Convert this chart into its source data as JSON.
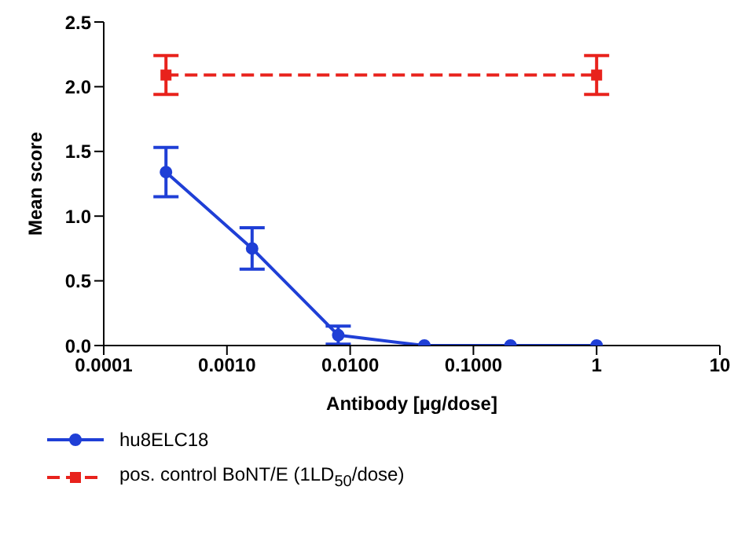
{
  "chart_data": {
    "type": "line",
    "xlabel": "Antibody [µg/dose]",
    "ylabel": "Mean score",
    "log": "x",
    "xlim": [
      0.0001,
      10
    ],
    "xticks": [
      {
        "value": 0.0001,
        "label": "0.0001"
      },
      {
        "value": 0.001,
        "label": "0.0010"
      },
      {
        "value": 0.01,
        "label": "0.0100"
      },
      {
        "value": 0.1,
        "label": "0.1000"
      },
      1,
      10
    ],
    "ylim": [
      0,
      2.5
    ],
    "yticks": [
      {
        "value": 0,
        "label": "0.0"
      },
      {
        "value": 0.5,
        "label": "0.5"
      },
      {
        "value": 1,
        "label": "1.0"
      },
      {
        "value": 1.5,
        "label": "1.5"
      },
      {
        "value": 2,
        "label": "2.0"
      },
      {
        "value": 2.5,
        "label": "2.5"
      }
    ],
    "legend": "bottom left",
    "series": [
      {
        "name": "hu8ELC18",
        "color": "#1f3fd6",
        "x": [
          0.00032,
          0.0016,
          0.008,
          0.04,
          0.2,
          1
        ],
        "values": [
          1.34,
          0.75,
          0.08,
          0,
          0,
          0
        ],
        "errors": [
          0.19,
          0.16,
          0.07,
          null,
          null,
          null
        ],
        "marker": "circle",
        "line_style": "solid"
      },
      {
        "name": "pos. control BoNT/E (1LD$_{50}$/dose)",
        "color": "#e8221c",
        "x": [
          0.00032,
          1
        ],
        "values": [
          2.09,
          2.09
        ],
        "errors": [
          0.15,
          0.15
        ],
        "marker": "square",
        "line_style": "dashed"
      }
    ]
  }
}
